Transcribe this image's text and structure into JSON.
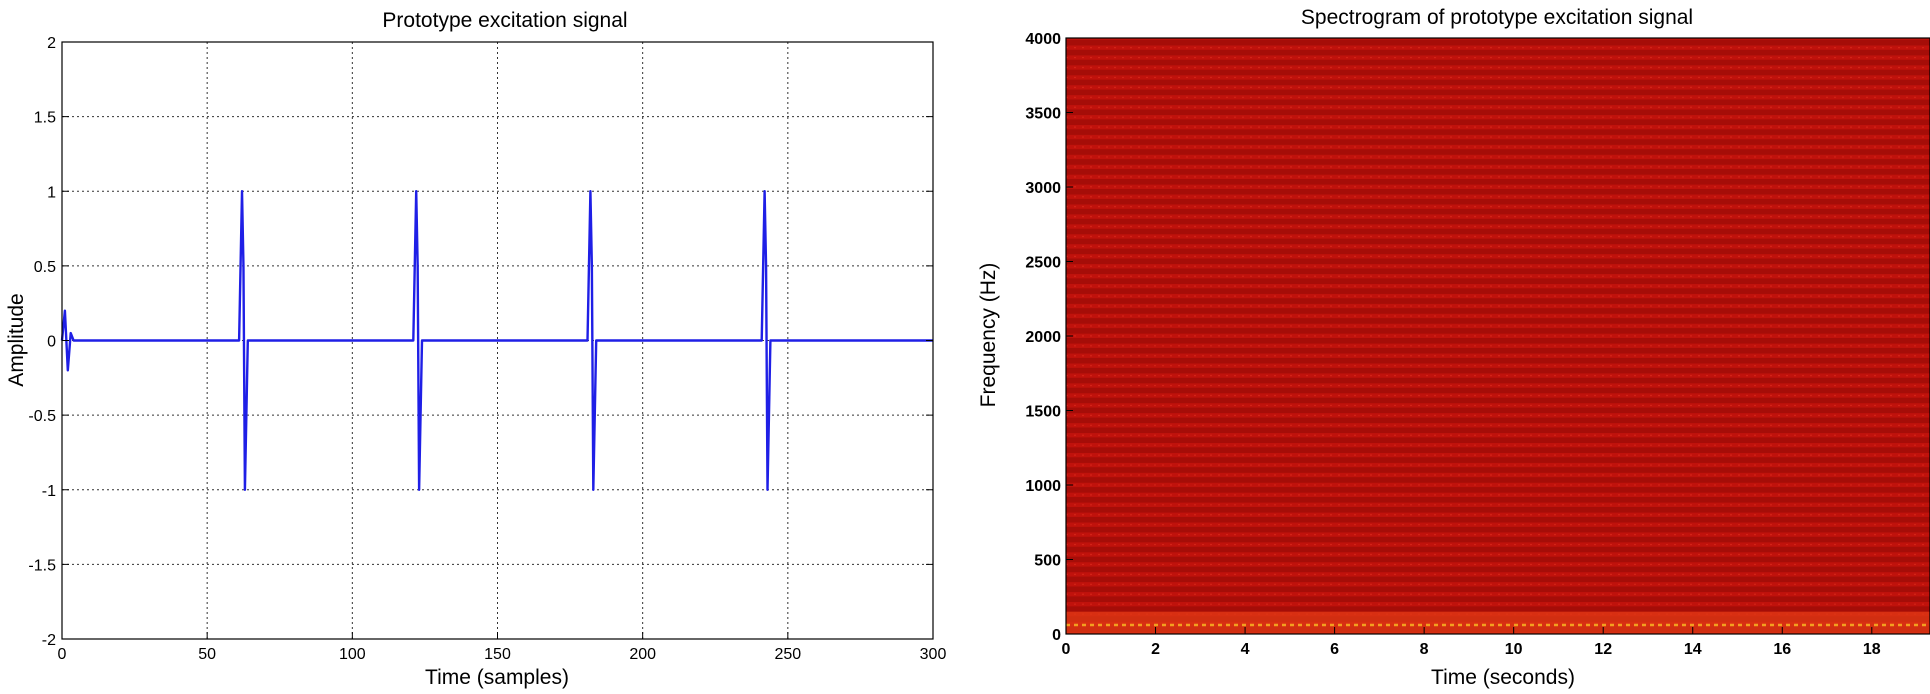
{
  "charts": [
    {
      "title": "Prototype excitation signal",
      "xlabel": "Time (samples)",
      "ylabel": "Amplitude",
      "xticks": [
        "0",
        "50",
        "100",
        "150",
        "200",
        "250",
        "300"
      ],
      "yticks": [
        "2",
        "1.5",
        "1",
        "0.5",
        "0",
        "-0.5",
        "-1",
        "-1.5",
        "-2"
      ]
    },
    {
      "title": "Spectrogram of prototype excitation signal",
      "xlabel": "Time (seconds)",
      "ylabel": "Frequency (Hz)",
      "xticks": [
        "0",
        "2",
        "4",
        "6",
        "8",
        "10",
        "12",
        "14",
        "16",
        "18"
      ],
      "yticks": [
        "4000",
        "3500",
        "3000",
        "2500",
        "2000",
        "1500",
        "1000",
        "500",
        "0"
      ]
    }
  ],
  "colors": {
    "signal": "#1f1fe6",
    "spec_base": "#c0120c",
    "spec_dark": "#8e0906",
    "spec_hot": "#f2a020"
  },
  "chart_data": [
    {
      "type": "line",
      "title": "Prototype excitation signal",
      "xlabel": "Time (samples)",
      "ylabel": "Amplitude",
      "xlim": [
        0,
        300
      ],
      "ylim": [
        -2,
        2
      ],
      "grid": true,
      "series": [
        {
          "x": [
            0,
            1,
            2,
            3,
            4,
            5,
            61,
            62,
            62.5,
            63,
            63.5,
            64,
            65,
            121,
            122,
            122.5,
            123,
            123.5,
            124,
            125,
            181,
            182,
            182.5,
            183,
            183.5,
            184,
            185,
            241,
            242,
            242.5,
            243,
            243.5,
            244,
            245,
            300
          ],
          "y": [
            0,
            0.2,
            -0.2,
            0.05,
            0,
            0,
            0,
            1,
            0.5,
            -1,
            -0.5,
            0,
            0,
            0,
            1,
            0.5,
            -1,
            -0.5,
            0,
            0,
            0,
            1,
            0.5,
            -1,
            -0.5,
            0,
            0,
            0,
            1,
            0.5,
            -1,
            -0.5,
            0,
            0,
            0
          ]
        }
      ]
    },
    {
      "type": "heatmap",
      "title": "Spectrogram of prototype excitation signal",
      "xlabel": "Time (seconds)",
      "ylabel": "Frequency (Hz)",
      "xlim": [
        0,
        19.3
      ],
      "ylim": [
        0,
        4000
      ],
      "harmonic_spacing_hz": 66.7
    }
  ]
}
